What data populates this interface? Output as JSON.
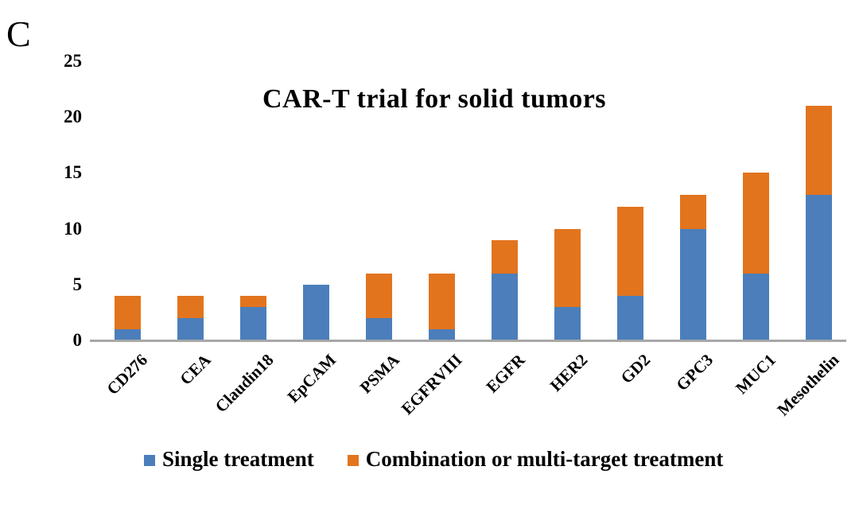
{
  "panel_label": "C",
  "chart_data": {
    "type": "bar",
    "stacked": true,
    "title": "CAR-T trial for solid tumors",
    "categories": [
      "CD276",
      "CEA",
      "Claudin18",
      "EpCAM",
      "PSMA",
      "EGFRVIII",
      "EGFR",
      "HER2",
      "GD2",
      "GPC3",
      "MUC1",
      "Mesothelin"
    ],
    "series": [
      {
        "name": "Single treatment",
        "color": "#4b7ebb",
        "values": [
          1,
          2,
          3,
          5,
          2,
          1,
          6,
          3,
          4,
          10,
          6,
          13
        ]
      },
      {
        "name": "Combination or multi-target treatment",
        "color": "#e2741e",
        "values": [
          3,
          2,
          1,
          0,
          4,
          5,
          3,
          7,
          8,
          3,
          9,
          8
        ]
      }
    ],
    "totals": [
      4,
      4,
      4,
      5,
      6,
      6,
      9,
      10,
      12,
      13,
      15,
      21
    ],
    "xlabel": "",
    "ylabel": "",
    "ylim": [
      0,
      25
    ],
    "yticks": [
      0,
      5,
      10,
      15,
      20,
      25
    ],
    "grid": false,
    "legend_position": "bottom",
    "axis_line_color": "#a7a7a7",
    "background_color": "#ffffff",
    "text_color": "#000000"
  }
}
